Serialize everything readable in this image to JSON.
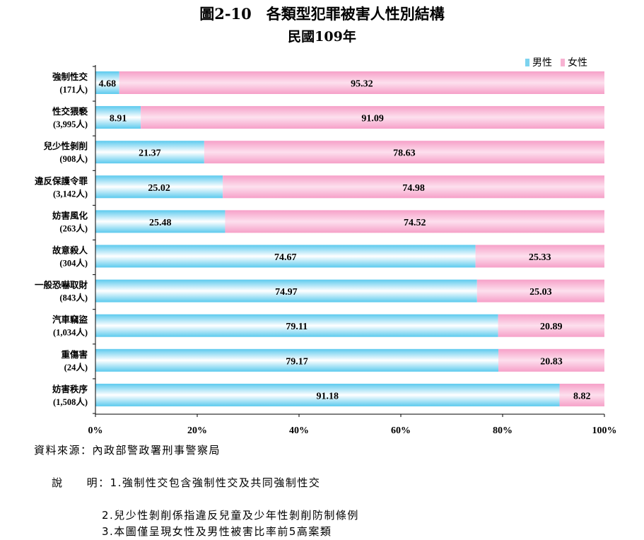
{
  "title": "圖2-10　各類型犯罪被害人性別結構",
  "subtitle": "民國109年",
  "legend": {
    "male": "男性",
    "female": "女性"
  },
  "colors": {
    "male": "#7dd3ef",
    "female": "#f7b3d2",
    "axis": "#000000"
  },
  "chart_data": {
    "type": "bar",
    "orientation": "horizontal",
    "stacked": true,
    "percent": true,
    "categories": [
      "強制性交",
      "性交猥褻",
      "兒少性剝削",
      "違反保護令罪",
      "妨害風化",
      "故意殺人",
      "一般恐嚇取財",
      "汽車竊盜",
      "重傷害",
      "妨害秩序"
    ],
    "category_counts": [
      "(171人)",
      "(3,995人)",
      "(908人)",
      "(3,142人)",
      "(263人)",
      "(304人)",
      "(843人)",
      "(1,034人)",
      "(24人)",
      "(1,508人)"
    ],
    "series": [
      {
        "name": "男性",
        "values": [
          4.68,
          8.91,
          21.37,
          25.02,
          25.48,
          74.67,
          74.97,
          79.11,
          79.17,
          91.18
        ]
      },
      {
        "name": "女性",
        "values": [
          95.32,
          91.09,
          78.63,
          74.98,
          74.52,
          25.33,
          25.03,
          20.89,
          20.83,
          8.82
        ]
      }
    ],
    "xlim": [
      0,
      100
    ],
    "xticks": [
      "0%",
      "20%",
      "40%",
      "60%",
      "80%",
      "100%"
    ],
    "legend_position": "top-right",
    "grid": false
  },
  "notes": {
    "source": "資料來源：內政部警政署刑事警察局",
    "explain_label": "說　　明：",
    "items": [
      "1.強制性交包含強制性交及共同強制性交",
      "2.兒少性剝削係指違反兒童及少年性剝削防制條例",
      "3.本圖僅呈現女性及男性被害比率前5高案類"
    ]
  }
}
